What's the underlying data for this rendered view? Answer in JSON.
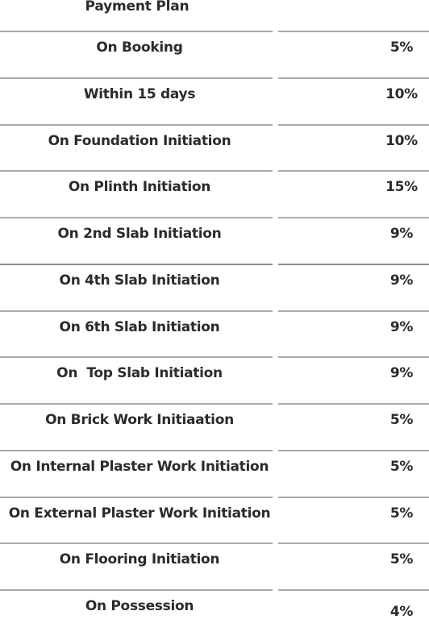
{
  "header": {
    "title": "Payment Plan"
  },
  "rows": [
    {
      "label": "On Booking",
      "value": "5%"
    },
    {
      "label": "Within 15 days",
      "value": "10%"
    },
    {
      "label": "On Foundation Initiation",
      "value": "10%"
    },
    {
      "label": "On Plinth Initiation",
      "value": "15%"
    },
    {
      "label": "On 2nd Slab Initiation",
      "value": "9%"
    },
    {
      "label": "On 4th Slab Initiation",
      "value": "9%"
    },
    {
      "label": "On 6th Slab Initiation",
      "value": "9%"
    },
    {
      "label": "On  Top Slab Initiation",
      "value": "9%"
    },
    {
      "label": "On Brick Work Initiaation",
      "value": "5%"
    },
    {
      "label": "On Internal Plaster Work Initiation",
      "value": "5%"
    },
    {
      "label": "On External Plaster Work Initiation",
      "value": "5%"
    },
    {
      "label": "On Flooring Initiation",
      "value": "5%"
    },
    {
      "label": "On Possession",
      "value": "4%"
    }
  ]
}
